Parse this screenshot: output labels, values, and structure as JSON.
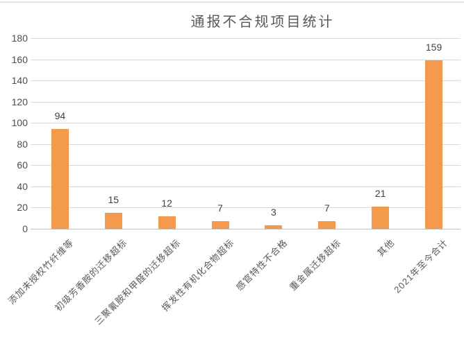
{
  "window": {
    "top_border_color": "#e3e3e3",
    "background_color": "#ffffff"
  },
  "chart_data": {
    "type": "bar",
    "title": "通报不合规项目统计",
    "categories": [
      "添加未授权竹纤维等",
      "初级芳香胺的迁移超标",
      "三聚氰胺和甲醛的迁移超标",
      "挥发性有机化合物超标",
      "感官特性不合格",
      "重金属迁移超标",
      "其他",
      "2021年至今合计"
    ],
    "values": [
      94,
      15,
      12,
      7,
      3,
      7,
      21,
      159
    ],
    "xlabel": "",
    "ylabel": "",
    "ylim": [
      0,
      180
    ],
    "ytick_step": 20,
    "yticks": [
      0,
      20,
      40,
      60,
      80,
      100,
      120,
      140,
      160,
      180
    ],
    "grid": true,
    "legend_position": "none",
    "value_labels_shown": true,
    "category_label_rotation_deg": 45,
    "bar_color": "#f49a4d",
    "title_color": "#595959",
    "tick_label_color": "#4d4d4d",
    "value_label_color": "#404040",
    "category_label_color": "#595959",
    "gridline_color": "#d9d9d9",
    "axis_line_color": "#bfbfbf"
  }
}
